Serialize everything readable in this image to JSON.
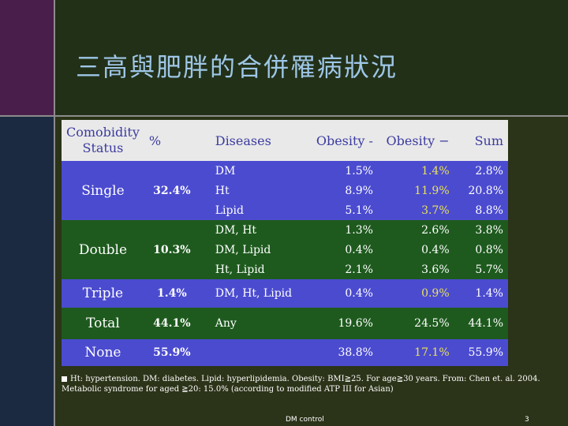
{
  "title": "三高與肥胖的合併罹病狀況",
  "table": {
    "headers": [
      "Comobidity Status",
      "%",
      "Diseases",
      "Obesity -",
      "Obesity −",
      "Sum"
    ],
    "groups": [
      {
        "status": "Single",
        "pct": "32.4%",
        "rows": [
          {
            "disease": "DM",
            "ob_pos": "1.5%",
            "ob_neg": "1.4%",
            "sum": "2.8%"
          },
          {
            "disease": "Ht",
            "ob_pos": "8.9%",
            "ob_neg": "11.9%",
            "sum": "20.8%"
          },
          {
            "disease": "Lipid",
            "ob_pos": "5.1%",
            "ob_neg": "3.7%",
            "sum": "8.8%"
          }
        ]
      },
      {
        "status": "Double",
        "pct": "10.3%",
        "rows": [
          {
            "disease": "DM, Ht",
            "ob_pos": "1.3%",
            "ob_neg": "2.6%",
            "sum": "3.8%"
          },
          {
            "disease": "DM, Lipid",
            "ob_pos": "0.4%",
            "ob_neg": "0.4%",
            "sum": "0.8%"
          },
          {
            "disease": "Ht, Lipid",
            "ob_pos": "2.1%",
            "ob_neg": "3.6%",
            "sum": "5.7%"
          }
        ]
      },
      {
        "status": "Triple",
        "pct": "1.4%",
        "rows": [
          {
            "disease": "DM, Ht, Lipid",
            "ob_pos": "0.4%",
            "ob_neg": "0.9%",
            "sum": "1.4%"
          }
        ]
      },
      {
        "status": "Total",
        "pct": "44.1%",
        "rows": [
          {
            "disease": "Any",
            "ob_pos": "19.6%",
            "ob_neg": "24.5%",
            "sum": "44.1%"
          }
        ]
      },
      {
        "status": "None",
        "pct": "55.9%",
        "rows": [
          {
            "disease": "",
            "ob_pos": "38.8%",
            "ob_neg": "17.1%",
            "sum": "55.9%"
          }
        ]
      }
    ]
  },
  "footnote": {
    "line1": "Ht: hypertension. DM: diabetes. Lipid: hyperlipidemia. Obesity: BMI≧25. For age≧30 years. From: Chen et. al. 2004.",
    "line2": "Metabolic syndrome for aged ≧20: 15.0% (according to modified ATP III for Asian)"
  },
  "footer": {
    "center": "DM control",
    "page": "3"
  },
  "colors": {
    "blue_band": "#4b4bd0",
    "green_band": "#1e5a1e",
    "header": "#e9e9e9",
    "pct_yellow": "#f2d42a",
    "title": "#9ec6e6"
  }
}
